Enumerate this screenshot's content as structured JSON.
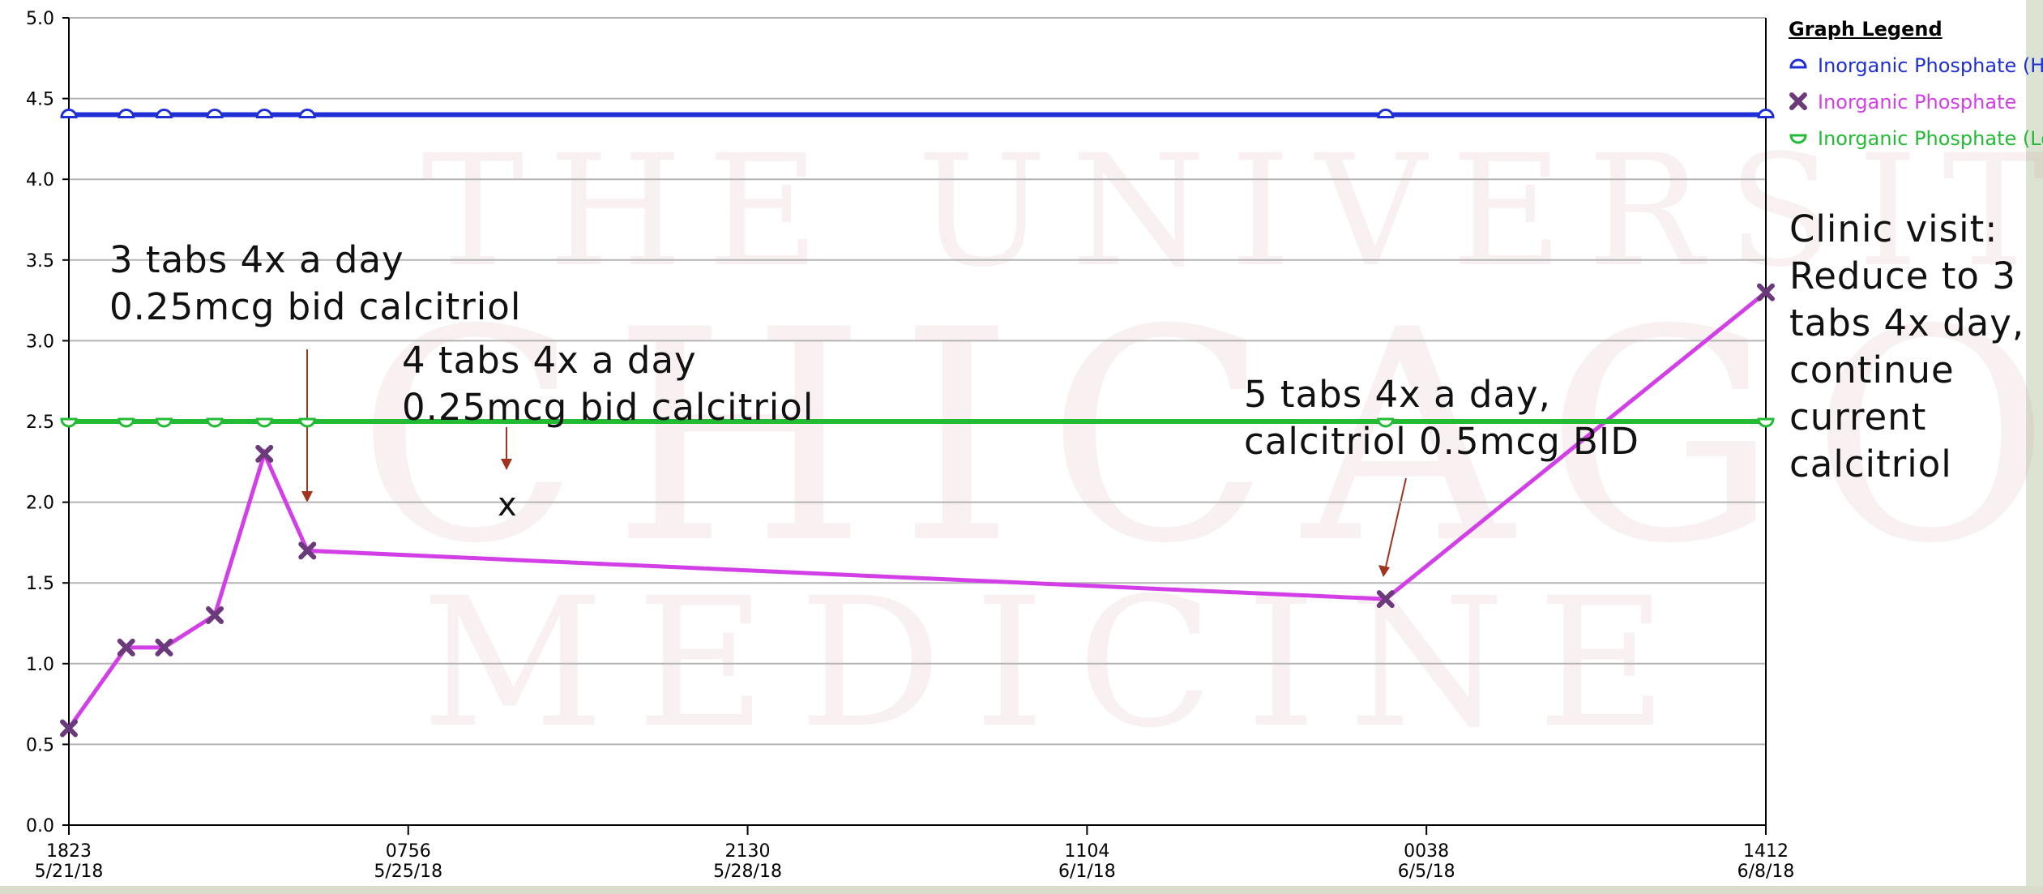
{
  "chart_data": {
    "type": "line",
    "x": [
      "2018-05-21T18:23",
      "2018-05-22T08:50",
      "2018-05-22T18:23",
      "2018-05-23T07:10",
      "2018-05-23T19:40",
      "2018-05-24T06:30",
      "2018-06-04T14:20",
      "2018-06-08T14:12"
    ],
    "series": [
      {
        "name": "Inorganic Phosphate (Hi",
        "color": "#1f2fd6",
        "marker": "dome",
        "values": [
          4.4,
          4.4,
          4.4,
          4.4,
          4.4,
          4.4,
          4.4,
          4.4
        ]
      },
      {
        "name": "Inorganic Phosphate",
        "color": "#d23fe6",
        "marker": "cross",
        "values": [
          0.6,
          1.1,
          1.1,
          1.3,
          2.3,
          1.7,
          1.4,
          3.3
        ]
      },
      {
        "name": "Inorganic Phosphate (Lo",
        "color": "#22bb33",
        "marker": "bowl",
        "values": [
          2.5,
          2.5,
          2.5,
          2.5,
          2.5,
          2.5,
          2.5,
          2.5
        ]
      }
    ],
    "xlim": [
      "2018-05-21T18:23",
      "2018-06-08T14:12"
    ],
    "xticks": [
      {
        "value": "2018-05-21T18:23",
        "label": "1823\n5/21/18"
      },
      {
        "value": "2018-05-25T07:56",
        "label": "0756\n5/25/18"
      },
      {
        "value": "2018-05-28T21:30",
        "label": "2130\n5/28/18"
      },
      {
        "value": "2018-06-01T11:04",
        "label": "1104\n6/1/18"
      },
      {
        "value": "2018-06-05T00:38",
        "label": "0038\n6/5/18"
      },
      {
        "value": "2018-06-08T14:12",
        "label": "1412\n6/8/18"
      }
    ],
    "ylim": [
      0,
      5
    ],
    "yticks": [
      {
        "value": 0,
        "label": "0.0"
      },
      0.5,
      {
        "value": 1,
        "label": "1.0"
      },
      1.5,
      {
        "value": 2,
        "label": "2.0"
      },
      2.5,
      {
        "value": 3,
        "label": "3.0"
      },
      3.5,
      {
        "value": 4,
        "label": "4.0"
      },
      4.5,
      {
        "value": 5,
        "label": "5.0"
      }
    ],
    "grid": true,
    "legend_title": "Graph Legend",
    "annotations": [
      "3 tabs 4x a day\n0.25mcg bid calcitriol",
      "4 tabs 4x a day\n0.25mcg bid calcitriol",
      "x",
      "5 tabs 4x a day,\ncalcitriol 0.5mcg BID",
      "Clinic visit:\nReduce to 3\ntabs 4x day,\ncontinue\ncurrent\ncalcitriol"
    ],
    "watermark": [
      "THE UNIVERSITY OF",
      "CHICAGO",
      "MEDICINE"
    ]
  }
}
